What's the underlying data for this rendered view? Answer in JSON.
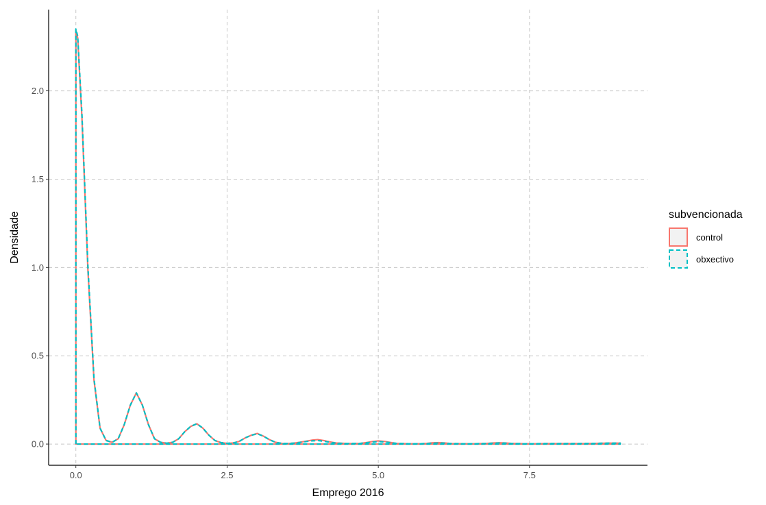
{
  "chart_data": {
    "type": "line",
    "title": "",
    "xlabel": "Emprego 2016",
    "ylabel": "Densidade",
    "xlim": [
      -0.45,
      9.45
    ],
    "ylim": [
      -0.12,
      2.46
    ],
    "x_ticks": [
      0,
      2.5,
      5,
      7.5
    ],
    "x_tick_labels": [
      "0.0",
      "2.5",
      "5.0",
      "7.5"
    ],
    "y_ticks": [
      0,
      0.5,
      1,
      1.5,
      2
    ],
    "y_tick_labels": [
      "0.0",
      "0.5",
      "1.0",
      "1.5",
      "2.0"
    ],
    "grid": "dashed major gridlines",
    "legend": {
      "title": "subvencionada",
      "placement": "right",
      "entries": [
        "control",
        "obxectivo"
      ]
    },
    "series": [
      {
        "name": "control",
        "color": "#F8766D",
        "line_style": "solid",
        "x": [
          0,
          0.03,
          0.1,
          0.2,
          0.3,
          0.4,
          0.5,
          0.6,
          0.7,
          0.8,
          0.9,
          1.0,
          1.1,
          1.2,
          1.3,
          1.4,
          1.5,
          1.6,
          1.7,
          1.8,
          1.9,
          2.0,
          2.1,
          2.2,
          2.3,
          2.4,
          2.5,
          2.6,
          2.7,
          2.8,
          2.9,
          3.0,
          3.1,
          3.2,
          3.3,
          3.4,
          3.5,
          3.6,
          3.7,
          3.8,
          3.9,
          4.0,
          4.1,
          4.2,
          4.3,
          4.5,
          4.7,
          4.8,
          4.9,
          5.0,
          5.1,
          5.2,
          5.3,
          5.5,
          5.7,
          5.8,
          5.9,
          6.0,
          6.1,
          6.2,
          6.4,
          6.6,
          6.8,
          6.9,
          7.0,
          7.1,
          7.2,
          7.4,
          7.6,
          7.8,
          8.0,
          8.2,
          8.4,
          8.6,
          8.8,
          9.0
        ],
        "y": [
          2.34,
          2.3,
          1.85,
          0.98,
          0.36,
          0.09,
          0.02,
          0.01,
          0.03,
          0.11,
          0.22,
          0.29,
          0.22,
          0.11,
          0.03,
          0.01,
          0.005,
          0.01,
          0.03,
          0.07,
          0.1,
          0.115,
          0.09,
          0.05,
          0.02,
          0.008,
          0.004,
          0.006,
          0.015,
          0.035,
          0.05,
          0.06,
          0.045,
          0.025,
          0.01,
          0.004,
          0.003,
          0.005,
          0.01,
          0.016,
          0.022,
          0.025,
          0.02,
          0.012,
          0.006,
          0.003,
          0.004,
          0.008,
          0.014,
          0.018,
          0.015,
          0.009,
          0.004,
          0.002,
          0.002,
          0.004,
          0.007,
          0.008,
          0.006,
          0.003,
          0.002,
          0.002,
          0.004,
          0.006,
          0.007,
          0.006,
          0.004,
          0.002,
          0.002,
          0.003,
          0.003,
          0.003,
          0.003,
          0.004,
          0.005,
          0.005
        ]
      },
      {
        "name": "obxectivo",
        "color": "#00BFC4",
        "line_style": "dashed",
        "x": [
          0,
          0.03,
          0.1,
          0.2,
          0.3,
          0.4,
          0.5,
          0.6,
          0.7,
          0.8,
          0.9,
          1.0,
          1.1,
          1.2,
          1.3,
          1.4,
          1.5,
          1.6,
          1.7,
          1.8,
          1.9,
          2.0,
          2.1,
          2.2,
          2.3,
          2.4,
          2.5,
          2.6,
          2.7,
          2.8,
          2.9,
          3.0,
          3.1,
          3.2,
          3.3,
          3.4,
          3.5,
          3.6,
          3.7,
          3.8,
          3.9,
          4.0,
          4.1,
          4.2,
          4.3,
          4.5,
          4.7,
          4.8,
          4.9,
          5.0,
          5.1,
          5.2,
          5.3,
          5.5,
          5.7,
          5.8,
          5.9,
          6.0,
          6.1,
          6.2,
          6.4,
          6.6,
          6.8,
          6.9,
          7.0,
          7.1,
          7.2,
          7.4,
          7.6,
          7.8,
          8.0,
          8.2,
          8.4,
          8.6,
          8.8,
          9.0
        ],
        "y": [
          2.35,
          2.31,
          1.87,
          1.0,
          0.37,
          0.09,
          0.02,
          0.01,
          0.03,
          0.11,
          0.22,
          0.29,
          0.22,
          0.11,
          0.03,
          0.01,
          0.005,
          0.01,
          0.03,
          0.07,
          0.1,
          0.115,
          0.09,
          0.05,
          0.02,
          0.008,
          0.004,
          0.006,
          0.015,
          0.035,
          0.05,
          0.058,
          0.045,
          0.025,
          0.01,
          0.004,
          0.003,
          0.005,
          0.009,
          0.014,
          0.018,
          0.02,
          0.016,
          0.01,
          0.005,
          0.003,
          0.004,
          0.007,
          0.011,
          0.014,
          0.012,
          0.008,
          0.004,
          0.002,
          0.002,
          0.003,
          0.005,
          0.006,
          0.005,
          0.003,
          0.002,
          0.002,
          0.003,
          0.005,
          0.006,
          0.005,
          0.003,
          0.002,
          0.002,
          0.003,
          0.003,
          0.003,
          0.003,
          0.004,
          0.005,
          0.005
        ]
      }
    ]
  }
}
